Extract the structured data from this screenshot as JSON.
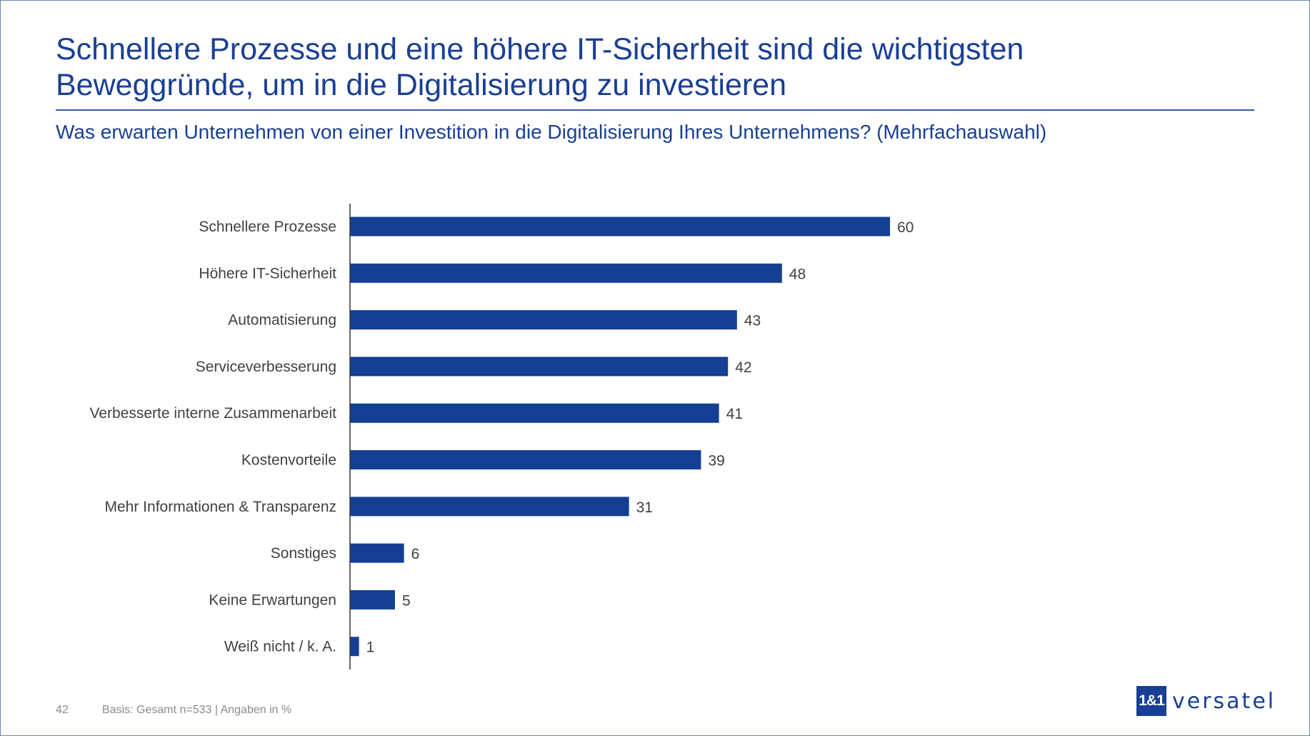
{
  "title_line1": "Schnellere Prozesse und eine höhere IT-Sicherheit sind die wichtigsten",
  "title_line2": "Beweggründe, um in die Digitalisierung zu investieren",
  "subtitle": "Was erwarten Unternehmen von einer Investition in die Digitalisierung Ihres Unternehmens? (Mehrfachauswahl)",
  "footer": {
    "page_number": "42",
    "basis": "Basis: Gesamt n=533 | Angaben in %"
  },
  "logo": {
    "mark": "1&1",
    "text": "versatel"
  },
  "colors": {
    "bar": "#143f94",
    "title": "#1a3f94",
    "label": "#404040"
  },
  "chart_data": {
    "type": "bar",
    "orientation": "horizontal",
    "categories": [
      "Schnellere Prozesse",
      "Höhere IT-Sicherheit",
      "Automatisierung",
      "Serviceverbesserung",
      "Verbesserte interne Zusammenarbeit",
      "Kostenvorteile",
      "Mehr Informationen & Transparenz",
      "Sonstiges",
      "Keine Erwartungen",
      "Weiß nicht / k. A."
    ],
    "values": [
      60,
      48,
      43,
      42,
      41,
      39,
      31,
      6,
      5,
      1
    ],
    "data_labels": true,
    "grid": false,
    "xlim": [
      0,
      100
    ]
  }
}
